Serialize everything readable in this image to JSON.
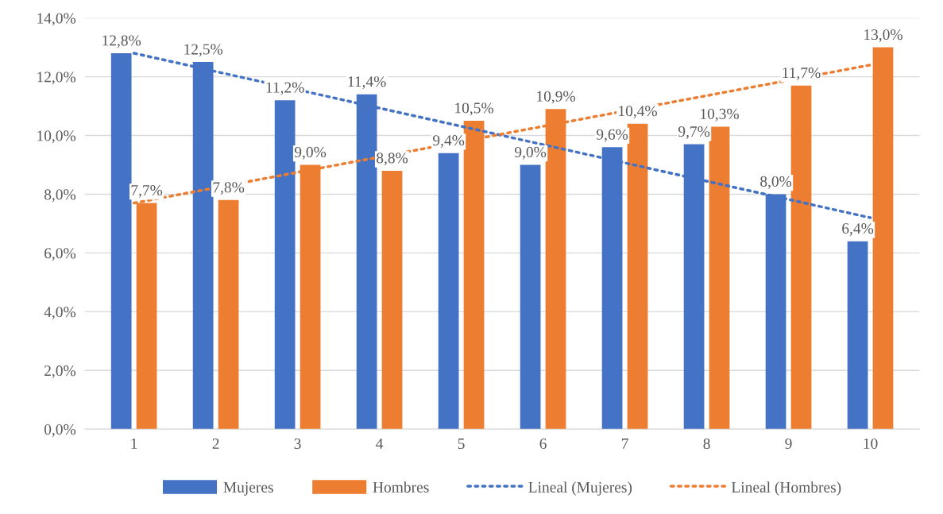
{
  "chart_data": {
    "type": "bar",
    "categories": [
      "1",
      "2",
      "3",
      "4",
      "5",
      "6",
      "7",
      "8",
      "9",
      "10"
    ],
    "series": [
      {
        "name": "Mujeres",
        "color": "#4472c4",
        "values": [
          12.8,
          12.5,
          11.2,
          11.4,
          9.4,
          9.0,
          9.6,
          9.7,
          8.0,
          6.4
        ],
        "value_labels": [
          "12,8%",
          "12,5%",
          "11,2%",
          "11,4%",
          "9,4%",
          "9,0%",
          "9,6%",
          "9,7%",
          "8,0%",
          "6,4%"
        ]
      },
      {
        "name": "Hombres",
        "color": "#ed7d31",
        "values": [
          7.7,
          7.8,
          9.0,
          8.8,
          10.5,
          10.9,
          10.4,
          10.3,
          11.7,
          13.0
        ],
        "value_labels": [
          "7,7%",
          "7,8%",
          "9,0%",
          "8,8%",
          "10,5%",
          "10,9%",
          "10,4%",
          "10,3%",
          "11,7%",
          "13,0%"
        ]
      },
      {
        "name": "Lineal (Mujeres)",
        "type": "line",
        "line_style": "dotted",
        "color": "#4472c4",
        "x": [
          "1",
          "10"
        ],
        "values": [
          12.8,
          7.2
        ]
      },
      {
        "name": "Lineal (Hombres)",
        "type": "line",
        "line_style": "dotted",
        "color": "#ed7d31",
        "x": [
          "1",
          "10"
        ],
        "values": [
          7.7,
          12.4
        ]
      }
    ],
    "ylim": [
      0,
      14
    ],
    "yticks": [
      {
        "value": 0,
        "label": "0,0%"
      },
      {
        "value": 2,
        "label": "2,0%"
      },
      {
        "value": 4,
        "label": "4,0%"
      },
      {
        "value": 6,
        "label": "6,0%"
      },
      {
        "value": 8,
        "label": "8,0%"
      },
      {
        "value": 10,
        "label": "10,0%"
      },
      {
        "value": 12,
        "label": "12,0%"
      },
      {
        "value": 14,
        "label": "14,0%"
      }
    ],
    "grid": "y",
    "legend": "bottom"
  }
}
